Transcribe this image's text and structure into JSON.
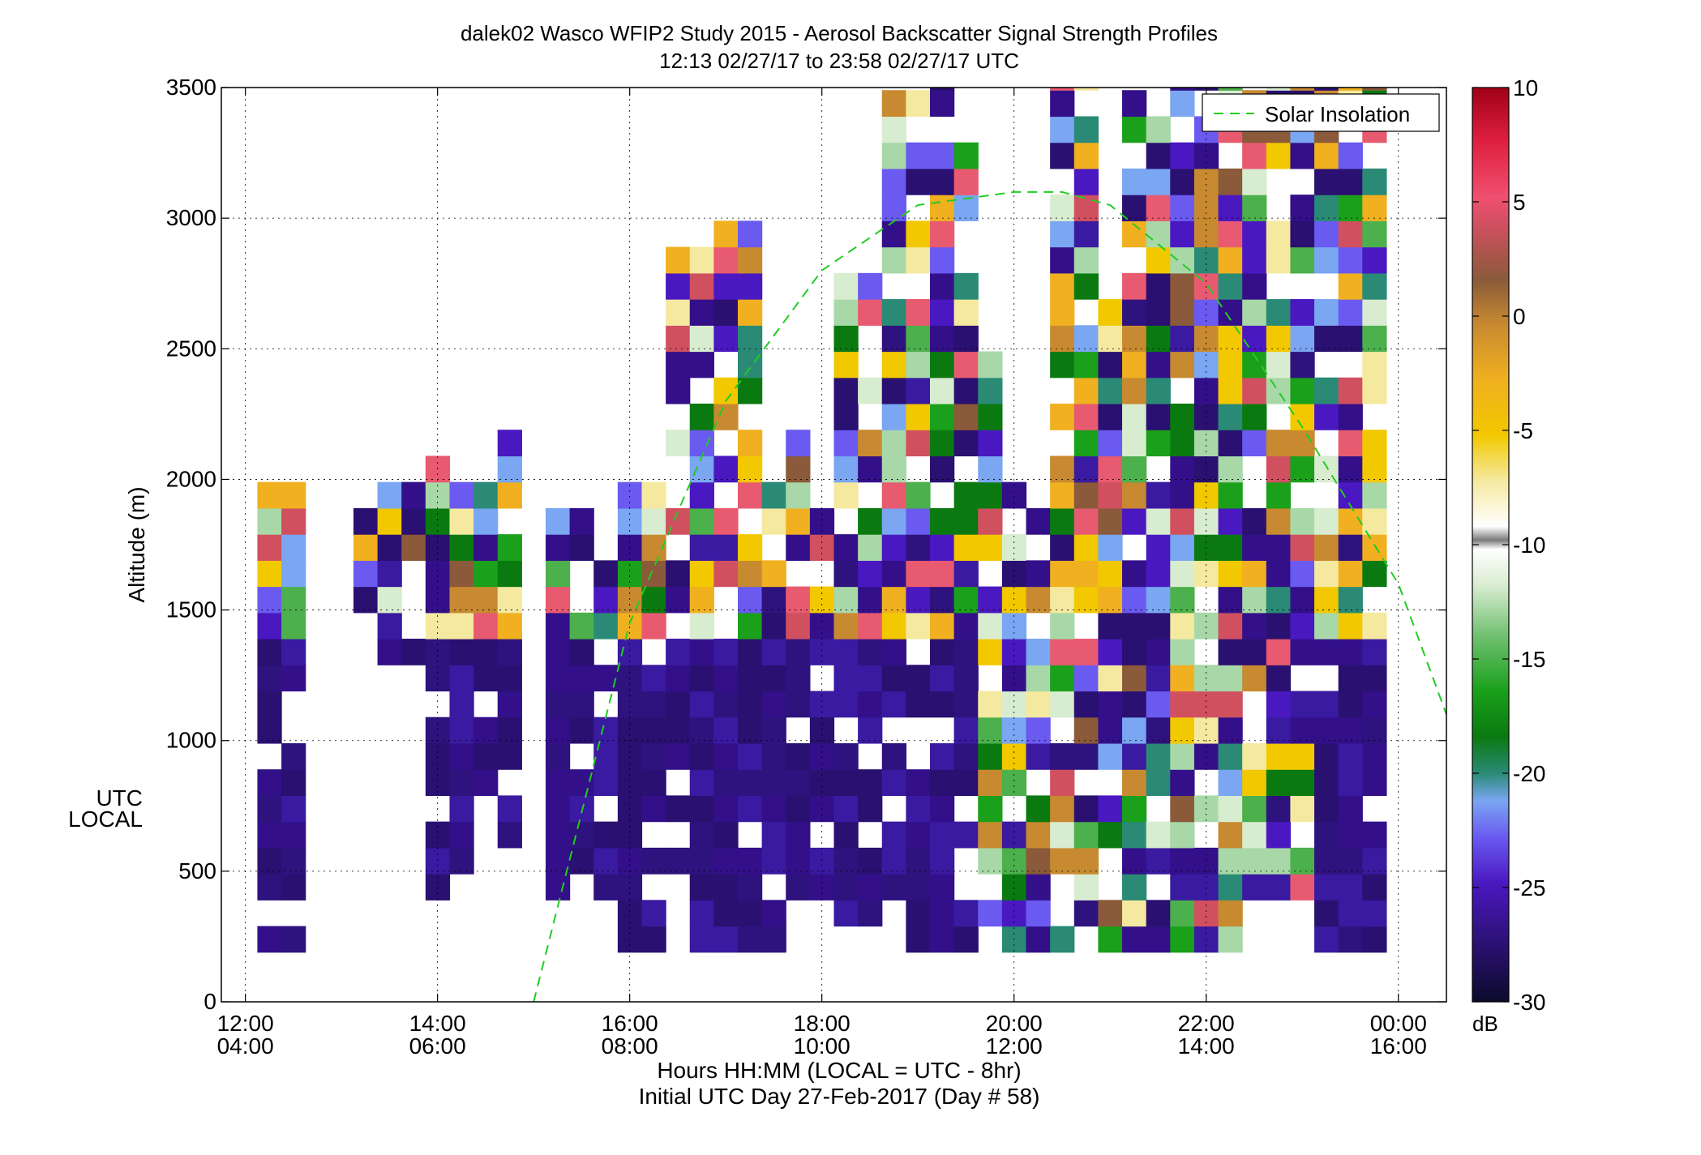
{
  "title": {
    "line1": "dalek02 Wasco WFIP2 Study 2015 - Aerosol Backscatter Signal Strength Profiles",
    "line2": "12:13 02/27/17 to 23:58 02/27/17  UTC"
  },
  "axis_labels": {
    "xlabel1": "Hours HH:MM  (LOCAL = UTC - 8hr)",
    "xlabel2": "Initial UTC Day 27-Feb-2017 (Day # 58)",
    "ylabel": "Altitude (m)",
    "utc_row": "UTC",
    "local_row": "LOCAL",
    "colorbar_unit": "dB"
  },
  "legend": {
    "label": "Solar Insolation",
    "position": "top-right"
  },
  "colors": {
    "solar_line": "#22cc22"
  },
  "chart_data": {
    "type": "heatmap",
    "x_range_utc_hours": [
      11.75,
      24.5
    ],
    "y_range_m": [
      0,
      3500
    ],
    "x_ticks": [
      {
        "hour": 12,
        "utc": "12:00",
        "local": "04:00"
      },
      {
        "hour": 14,
        "utc": "14:00",
        "local": "06:00"
      },
      {
        "hour": 16,
        "utc": "16:00",
        "local": "08:00"
      },
      {
        "hour": 18,
        "utc": "18:00",
        "local": "10:00"
      },
      {
        "hour": 20,
        "utc": "20:00",
        "local": "12:00"
      },
      {
        "hour": 22,
        "utc": "22:00",
        "local": "14:00"
      },
      {
        "hour": 24,
        "utc": "00:00",
        "local": "16:00"
      }
    ],
    "y_ticks": [
      0,
      500,
      1000,
      1500,
      2000,
      2500,
      3000,
      3500
    ],
    "colorbar": {
      "range_db": [
        -30,
        10
      ],
      "ticks": [
        10,
        5,
        0,
        -5,
        -10,
        -15,
        -20,
        -25,
        -30
      ],
      "unit": "dB"
    },
    "grid": true,
    "time_step_hours": 0.25,
    "altitude_step_m": 100,
    "cells": "12.25:190-1900;12.5:190-1900;13.25:1490-1800;13.5:1290-1900;13.75:1290-1900;14:390-2000;14.25:490-1900;14.5:790-1900;14.75:390-2100;15.25:390-1800;15.5:490-1800;15.75:390-1600;16:190-1900;16.25:190-1900;16.5:390-2800;16.75:190-2800;17:190-2900;17.25:190-2900;17.5:190-1900;17.75:290-2100;18:390-1900;18.25:290-2700;18.5:290-2700;18.75:290-3400;19:190-3400;19.25:190-3500;19.5:190-3200;19.75:290-2400;20:190-1900;20.25:190-1900;20.5:190-3500;20.75:190-3500;21:190-2600;21.25:190-3400;21.5:190-3400;21.75:190-3500;22:190-3500;22.25:190-3500;22.5:390-3500;22.75:390-3500;23:390-3500;23.25:190-3500;23.5:190-3500;23.75:190-3500",
    "series": [
      {
        "name": "Solar Insolation",
        "x_utc_hours": [
          15.0,
          16.0,
          17.0,
          18.0,
          19.0,
          20.0,
          20.5,
          21.0,
          22.0,
          23.0,
          24.0,
          24.5
        ],
        "y_m": [
          0,
          1450,
          2300,
          2800,
          3050,
          3100,
          3100,
          3050,
          2750,
          2200,
          1600,
          1100
        ]
      }
    ]
  }
}
